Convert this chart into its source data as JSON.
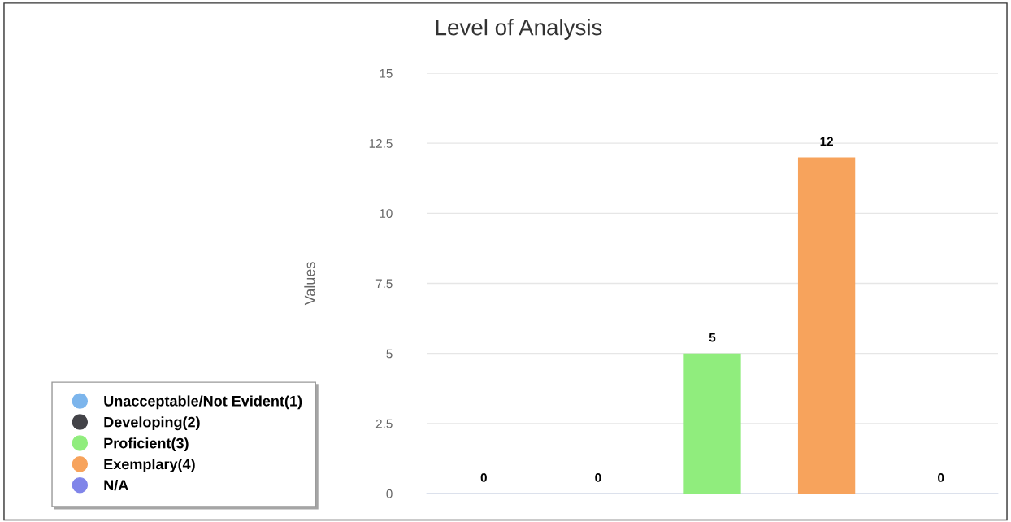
{
  "chart_data": {
    "type": "bar",
    "title": "Level of Analysis",
    "ylabel": "Values",
    "categories": [
      null,
      null,
      null,
      null,
      null
    ],
    "series": [
      {
        "name": "Unacceptable/Not Evident(1)",
        "color": "#7cb5ec",
        "values": [
          0,
          null,
          null,
          null,
          null
        ]
      },
      {
        "name": "Developing(2)",
        "color": "#434348",
        "values": [
          null,
          0,
          null,
          null,
          null
        ]
      },
      {
        "name": "Proficient(3)",
        "color": "#90ed7d",
        "values": [
          null,
          null,
          5,
          null,
          null
        ]
      },
      {
        "name": "Exemplary(4)",
        "color": "#f7a35c",
        "values": [
          null,
          null,
          null,
          12,
          null
        ]
      },
      {
        "name": "N/A",
        "color": "#8085e9",
        "values": [
          null,
          null,
          null,
          null,
          0
        ]
      }
    ],
    "ylim": [
      0,
      15
    ],
    "yticks": [
      0,
      2.5,
      5,
      7.5,
      10,
      12.5,
      15
    ],
    "grid": "y",
    "legend": "bottom left",
    "data_labels": true,
    "tick_labels": "y"
  }
}
